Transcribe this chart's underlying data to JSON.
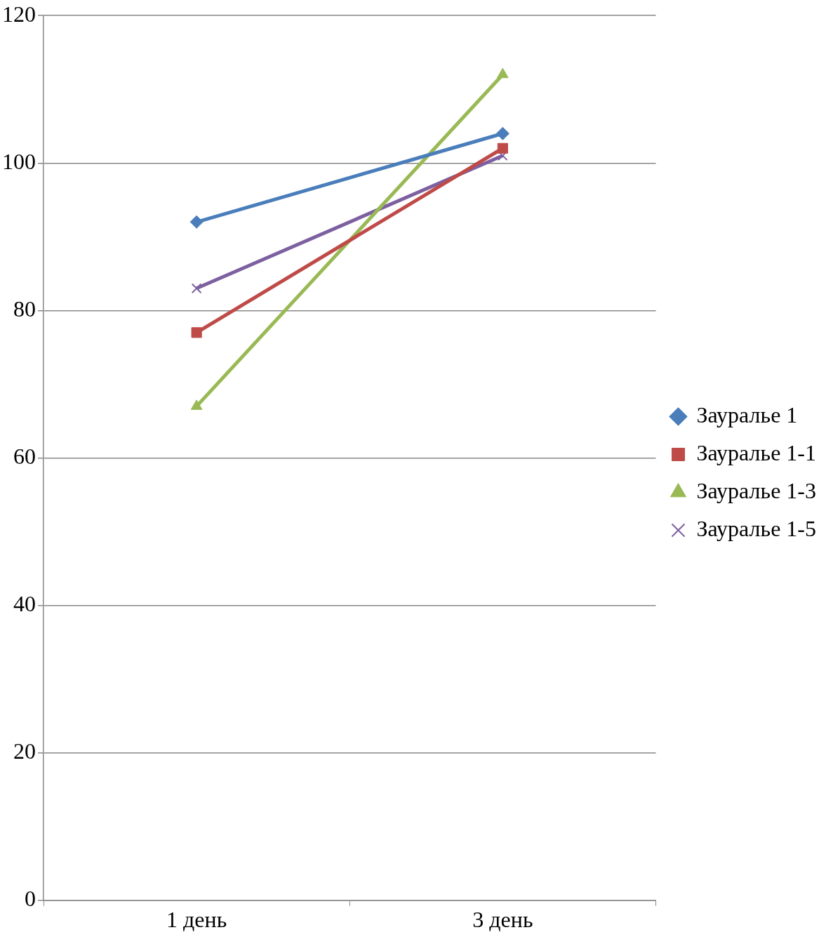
{
  "chart_data": {
    "type": "line",
    "categories": [
      "1 день",
      "3 день"
    ],
    "series": [
      {
        "name": "Зауралье 1",
        "color": "#4a7ebb",
        "marker": "diamond",
        "values": [
          92,
          104
        ]
      },
      {
        "name": "Зауралье 1-1",
        "color": "#be4b48",
        "marker": "square",
        "values": [
          77,
          102
        ]
      },
      {
        "name": "Зауралье 1-3",
        "color": "#98b954",
        "marker": "triangle",
        "values": [
          67,
          112
        ]
      },
      {
        "name": "Зауралье 1-5",
        "color": "#7d60a0",
        "marker": "cross",
        "values": [
          83,
          101
        ]
      }
    ],
    "ylim": [
      0,
      120
    ],
    "yticks": [
      0,
      20,
      40,
      60,
      80,
      100,
      120
    ],
    "grid": "y",
    "legend": "right",
    "line_style": "solid"
  }
}
